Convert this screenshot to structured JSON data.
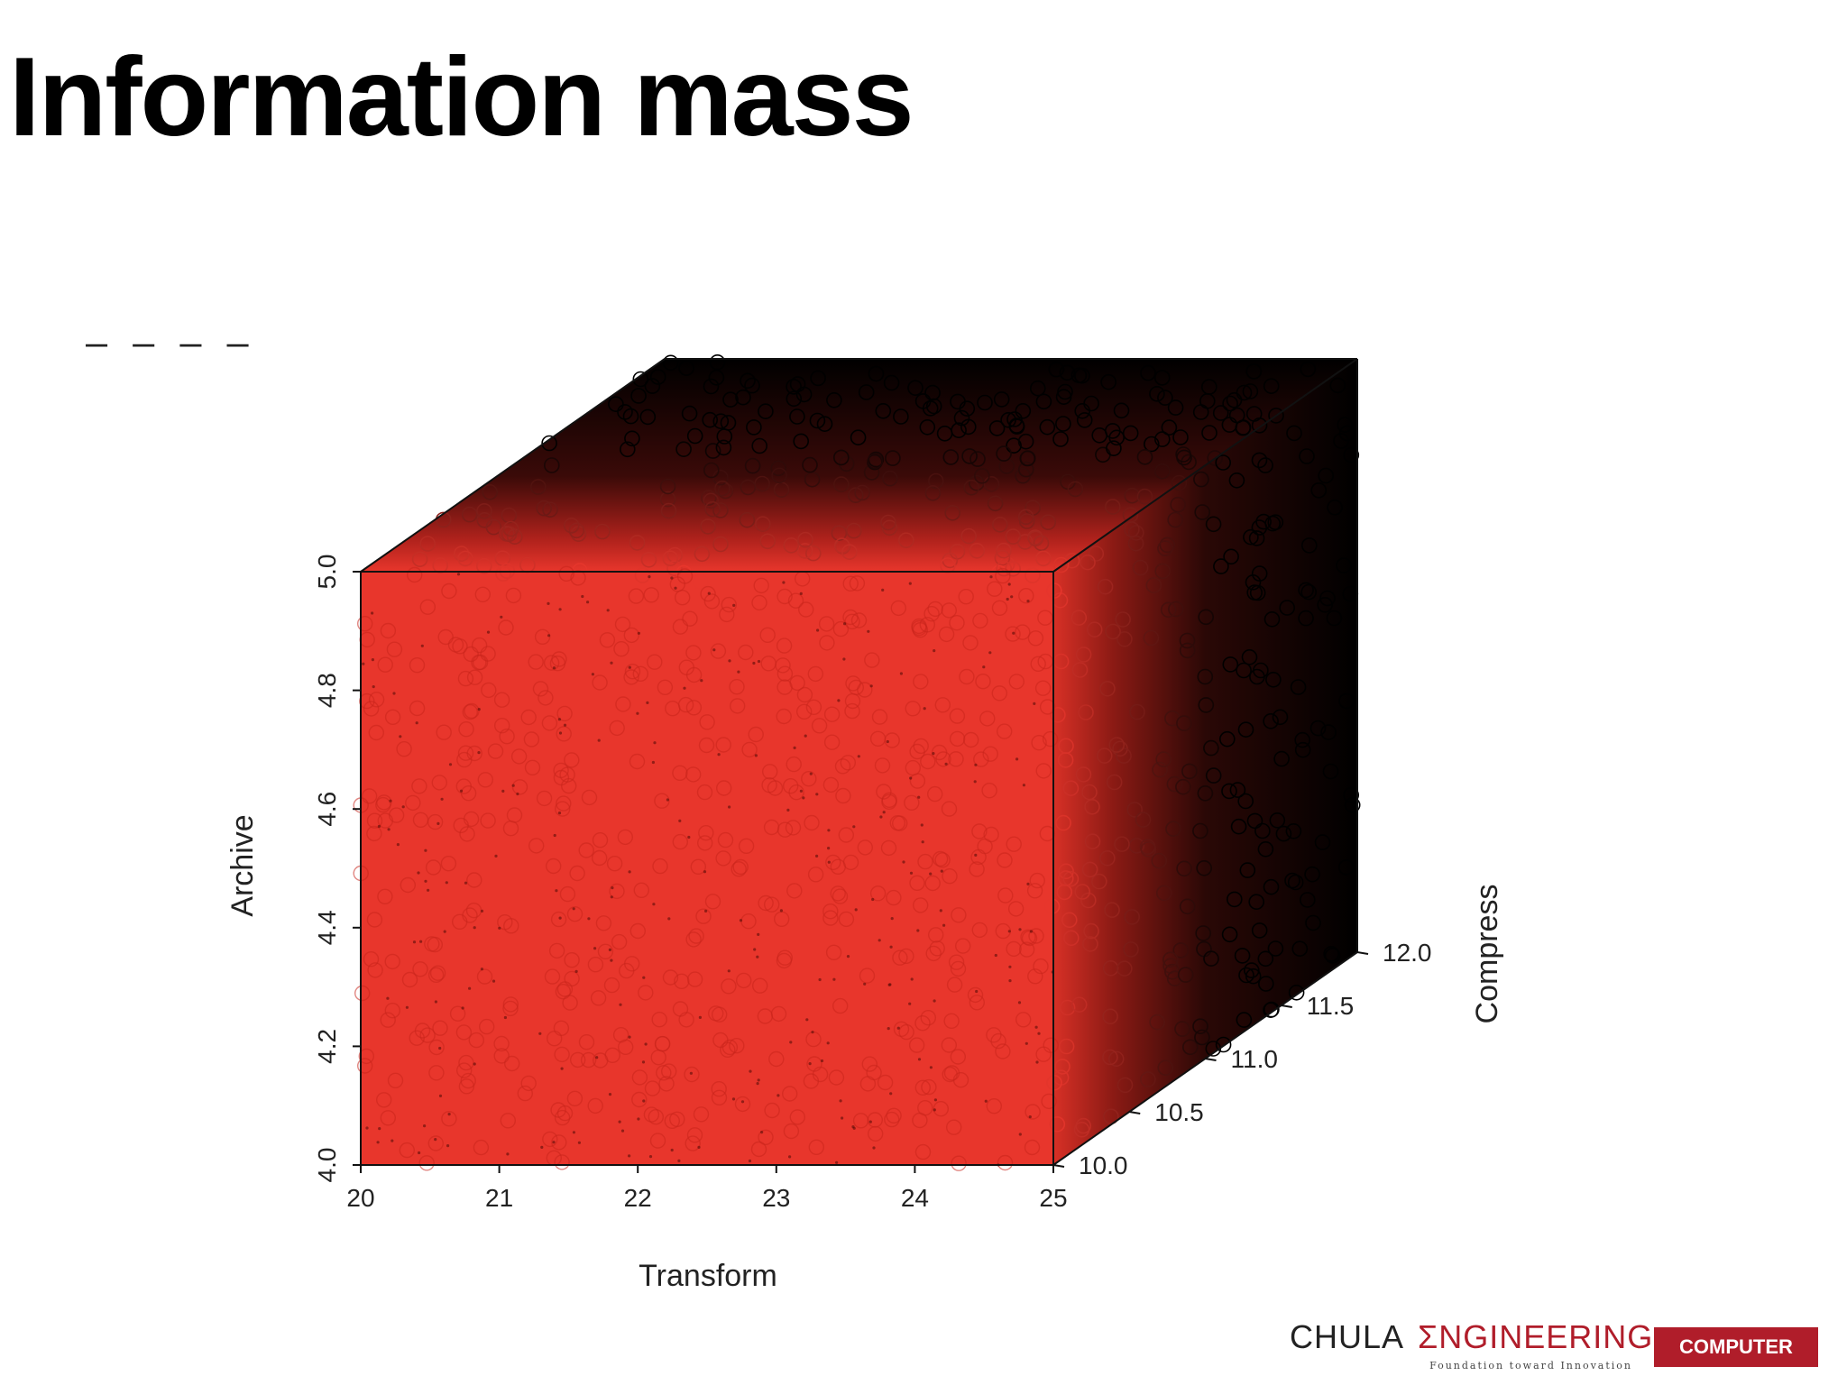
{
  "slide": {
    "title": "Information mass",
    "dash_marker": "– – – –"
  },
  "chart_data": {
    "type": "scatter",
    "projection": "3d",
    "title": "",
    "xlabel": "Transform",
    "ylabel": "Compress",
    "zlabel": "Archive",
    "xlim": [
      20,
      25
    ],
    "ylim": [
      10.0,
      12.0
    ],
    "zlim": [
      4.0,
      5.0
    ],
    "xticks": [
      "20",
      "21",
      "22",
      "23",
      "24",
      "25"
    ],
    "yticks": [
      "10.0",
      "10.5",
      "11.0",
      "11.5",
      "12.0"
    ],
    "zticks": [
      "4.0",
      "4.2",
      "4.4",
      "4.6",
      "4.8",
      "5.0"
    ],
    "distribution": "uniform random points filling the box (open circle markers)",
    "marker": "open-circle",
    "color_gradient": {
      "near": "#e8362c",
      "far": "#000000"
    },
    "grid": false,
    "legend": "none"
  },
  "footer": {
    "brand_left": "CHULA",
    "brand_right": "ΣNGINEERING",
    "tagline": "Foundation toward Innovation",
    "department": "COMPUTER",
    "brand_color": "#b01d2a"
  }
}
